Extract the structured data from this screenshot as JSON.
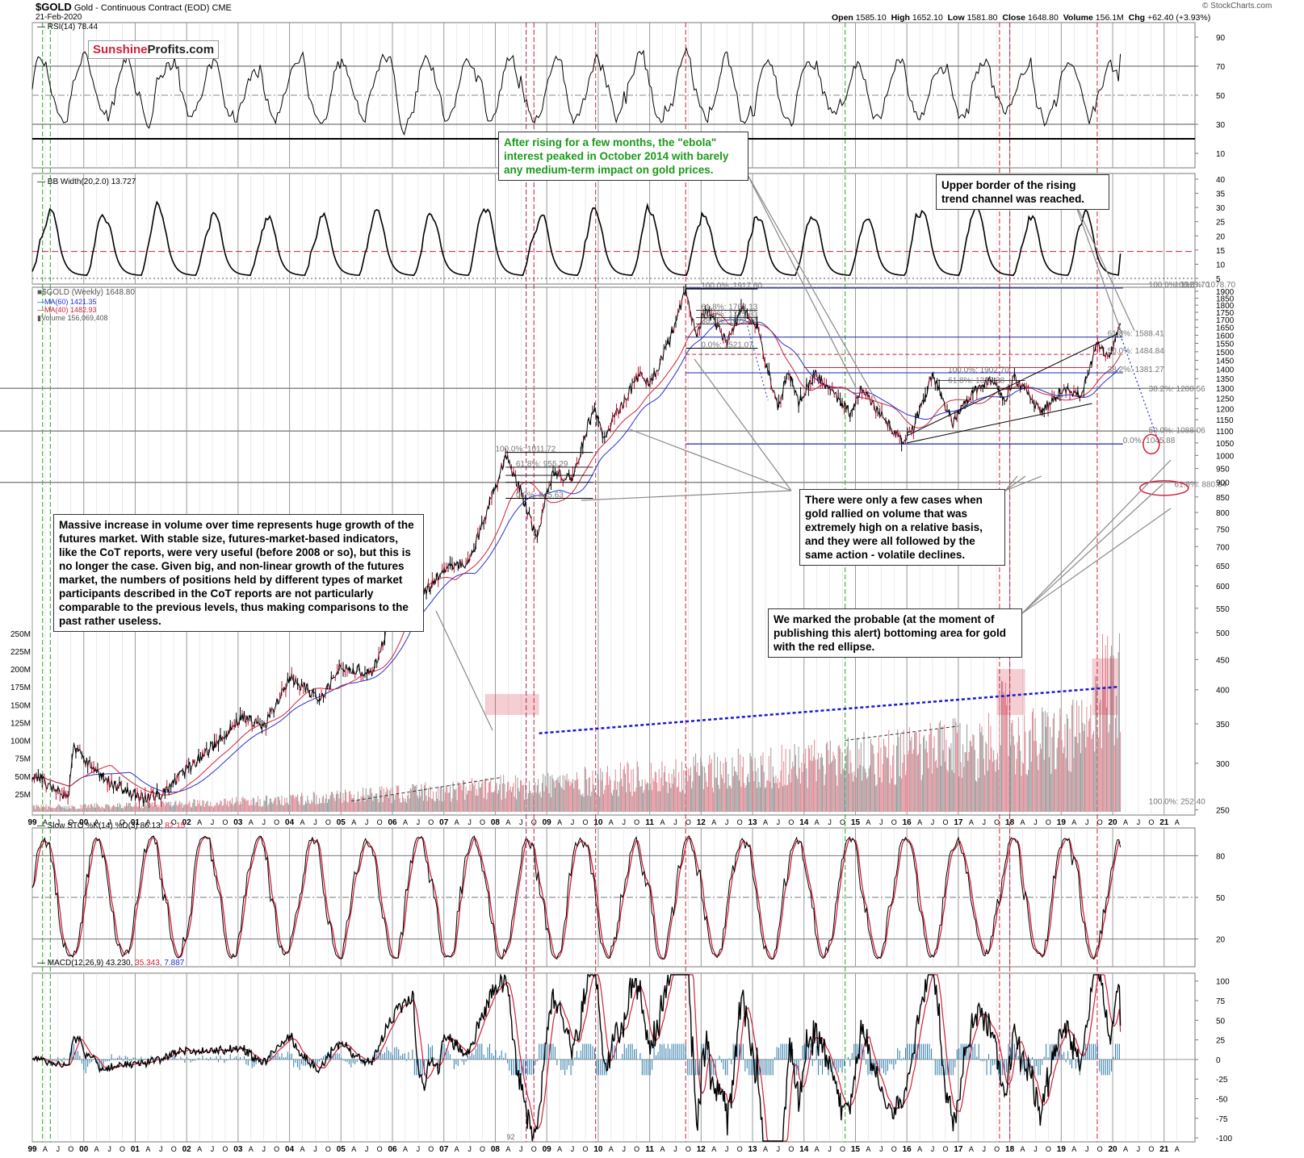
{
  "header": {
    "symbol": "$GOLD",
    "name": "Gold - Continuous Contract (EOD)",
    "exchange": "CME",
    "date": "21-Feb-2020",
    "open_label": "Open",
    "open": "1585.10",
    "high_label": "High",
    "high": "1652.10",
    "low_label": "Low",
    "low": "1581.80",
    "close_label": "Close",
    "close": "1648.80",
    "volume_label": "Volume",
    "volume": "156.1M",
    "chg_label": "Chg",
    "chg": "+62.40 (+3.93%)",
    "credit": "© StockCharts.com"
  },
  "logo": {
    "part1": "Sunshine",
    "part2": "Profits.com"
  },
  "annotations": {
    "ebola": "After rising for a few months, the \"ebola\" interest peaked in October 2014 with barely any medium-term impact on gold prices.",
    "upper_border": "Upper border of the rising trend channel was reached.",
    "volume_growth": "Massive increase in volume over time represents huge growth of the futures market. With stable size, futures-market-based indicators, like the CoT reports, were very useful (before 2008 or so), but this is no longer the case. Given big, and non-linear growth of the futures market, the numbers of positions held by different types of market participants described in the CoT reports are not particularly comparable to the previous levels, thus making comparisons to the past rather useless.",
    "few_cases": "There were only a few cases when gold rallied on volume that was extremely high on a relative basis, and they were all followed by the same action - volatile declines.",
    "ellipse": "We marked the probable (at the moment of publishing this alert) bottoming area for gold with the red ellipse."
  },
  "chart_data": [
    {
      "type": "line",
      "panel": "rsi",
      "title": "RSI(14) 78.44",
      "y_ticks": [
        10,
        30,
        50,
        70,
        90
      ],
      "ylim": [
        0,
        100
      ],
      "levels": [
        30,
        50,
        70,
        20
      ],
      "last": 78.44
    },
    {
      "type": "line",
      "panel": "bb_width",
      "title": "BB Width(20,2.0) 13.727",
      "y_ticks": [
        5,
        10,
        15,
        20,
        25,
        30,
        35,
        40
      ],
      "ylim": [
        3,
        42
      ],
      "levels": [
        14.5
      ],
      "last": 13.727
    },
    {
      "type": "line",
      "panel": "price",
      "title": "$GOLD (Weekly) 1648.80",
      "legend": [
        "MA(60) 1421.35",
        "MA(40) 1482.93",
        "Volume 156,069,408"
      ],
      "scale": "log",
      "y_ticks": [
        250,
        300,
        350,
        400,
        450,
        500,
        550,
        600,
        650,
        700,
        750,
        800,
        850,
        900,
        950,
        1000,
        1050,
        1100,
        1150,
        1200,
        1250,
        1300,
        1350,
        1400,
        1450,
        1500,
        1550,
        1600,
        1650,
        1700,
        1750,
        1800,
        1850,
        1900
      ],
      "volume_ticks": [
        "25M",
        "50M",
        "75M",
        "100M",
        "125M",
        "150M",
        "175M",
        "200M",
        "225M",
        "250M"
      ],
      "price_anchors": [
        [
          1999.0,
          288
        ],
        [
          1999.7,
          262
        ],
        [
          1999.8,
          320
        ],
        [
          2000.3,
          285
        ],
        [
          2001.1,
          262
        ],
        [
          2001.5,
          266
        ],
        [
          2002.5,
          320
        ],
        [
          2003.1,
          360
        ],
        [
          2003.5,
          345
        ],
        [
          2004.0,
          420
        ],
        [
          2004.6,
          385
        ],
        [
          2005.0,
          440
        ],
        [
          2005.6,
          425
        ],
        [
          2006.0,
          540
        ],
        [
          2006.4,
          710
        ],
        [
          2006.5,
          570
        ],
        [
          2007.0,
          640
        ],
        [
          2007.5,
          660
        ],
        [
          2008.2,
          1000
        ],
        [
          2008.5,
          870
        ],
        [
          2008.8,
          720
        ],
        [
          2009.1,
          930
        ],
        [
          2009.5,
          920
        ],
        [
          2009.9,
          1200
        ],
        [
          2010.1,
          1080
        ],
        [
          2010.5,
          1230
        ],
        [
          2010.8,
          1380
        ],
        [
          2011.0,
          1320
        ],
        [
          2011.3,
          1500
        ],
        [
          2011.7,
          1900
        ],
        [
          2011.9,
          1600
        ],
        [
          2012.1,
          1780
        ],
        [
          2012.5,
          1550
        ],
        [
          2012.8,
          1780
        ],
        [
          2013.1,
          1650
        ],
        [
          2013.3,
          1390
        ],
        [
          2013.5,
          1210
        ],
        [
          2013.7,
          1400
        ],
        [
          2013.9,
          1230
        ],
        [
          2014.2,
          1380
        ],
        [
          2014.5,
          1300
        ],
        [
          2014.9,
          1180
        ],
        [
          2015.1,
          1300
        ],
        [
          2015.5,
          1170
        ],
        [
          2015.9,
          1060
        ],
        [
          2016.1,
          1100
        ],
        [
          2016.5,
          1370
        ],
        [
          2016.9,
          1130
        ],
        [
          2017.3,
          1290
        ],
        [
          2017.7,
          1350
        ],
        [
          2017.9,
          1240
        ],
        [
          2018.1,
          1360
        ],
        [
          2018.6,
          1180
        ],
        [
          2019.0,
          1290
        ],
        [
          2019.4,
          1280
        ],
        [
          2019.7,
          1550
        ],
        [
          2019.9,
          1460
        ],
        [
          2020.15,
          1648
        ]
      ],
      "fib_levels": [
        "100.0%: 1917.60",
        "61.8%: 1763.13",
        "50.0%: 1715.33",
        "38.2%: 1672.44",
        "0.0%: 1521.07",
        "100.0%: 1923.70",
        "61.8%: 1588.41",
        "50.0%: 1484.84",
        "38.2%: 1381.27",
        "38.2%: 1280.56",
        "50.0%: 1088.06",
        "0.0%: 1045.88",
        "61.8%: 880.84",
        "100.0%: 1078.70",
        "61.8%: 1323.38",
        "100.0%: 1902.70",
        "100.0%: 252.40",
        "61.8%: 955.29",
        "0.0%: 845.63",
        "100.0%: 1011.72"
      ]
    },
    {
      "type": "line",
      "panel": "slow_sto",
      "title": "Slow STO %K(14) %D(3) 86.13,",
      "d_value": "82.15",
      "y_ticks": [
        20,
        50,
        80
      ],
      "ylim": [
        0,
        100
      ]
    },
    {
      "type": "line",
      "panel": "macd",
      "title": "MACD(12,26,9) 43.230,",
      "signal": "35.343,",
      "hist": "7.887",
      "y_ticks": [
        -100,
        -75,
        -50,
        -25,
        0,
        25,
        50,
        75,
        100
      ],
      "ylim": [
        -105,
        110
      ]
    }
  ],
  "x_axis": {
    "labels": [
      "99",
      "A",
      "J",
      "O",
      "00",
      "A",
      "J",
      "O",
      "01",
      "A",
      "J",
      "O",
      "02",
      "A",
      "J",
      "O",
      "03",
      "A",
      "J",
      "O",
      "04",
      "A",
      "J",
      "O",
      "05",
      "A",
      "J",
      "O",
      "06",
      "A",
      "J",
      "O",
      "07",
      "A",
      "J",
      "O",
      "08",
      "A",
      "J",
      "O",
      "09",
      "A",
      "J",
      "O",
      "10",
      "A",
      "J",
      "O",
      "11",
      "A",
      "J",
      "O",
      "12",
      "A",
      "J",
      "O",
      "13",
      "A",
      "J",
      "O",
      "14",
      "A",
      "J",
      "O",
      "15",
      "A",
      "J",
      "O",
      "16",
      "A",
      "J",
      "O",
      "17",
      "A",
      "J",
      "O",
      "18",
      "A",
      "J",
      "O",
      "19",
      "A",
      "J",
      "O",
      "20",
      "A",
      "J",
      "O",
      "21",
      "A"
    ],
    "bottom_marker": "92"
  }
}
